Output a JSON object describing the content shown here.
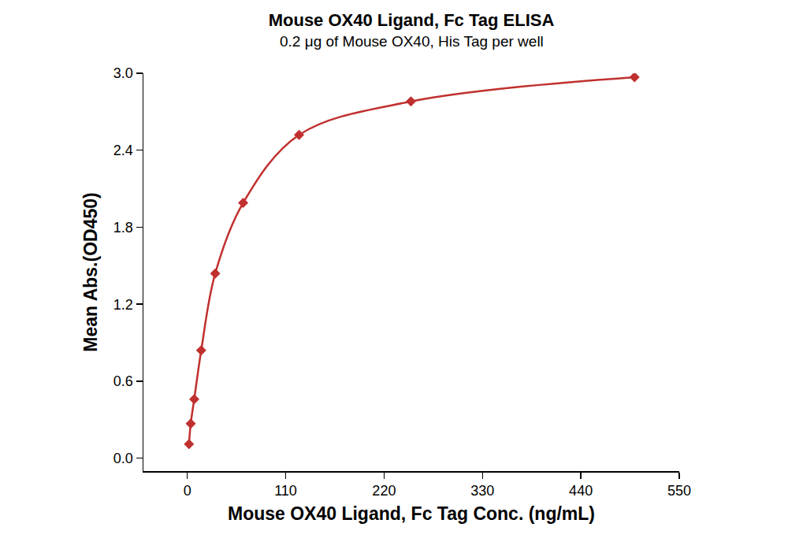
{
  "chart_data": {
    "type": "scatter",
    "title": "Mouse OX40 Ligand, Fc Tag ELISA",
    "subtitle": "0.2 μg of Mouse OX40, His Tag per well",
    "x_label": "Mouse OX40 Ligand, Fc Tag Conc. (ng/mL)",
    "y_label": "Mean Abs.(OD450)",
    "x": [
      1.95,
      3.9,
      7.8,
      15.6,
      31.25,
      62.5,
      125,
      250,
      500
    ],
    "values": [
      0.11,
      0.27,
      0.46,
      0.84,
      1.44,
      1.99,
      2.52,
      2.78,
      2.97
    ],
    "color": "#c0302f",
    "marker": "diamond",
    "line_style": "solid",
    "xlim": [
      -49,
      550
    ],
    "xticks": [
      0,
      110,
      220,
      330,
      440,
      550
    ],
    "ylim": [
      -0.1,
      3.0
    ],
    "yticks": [
      {
        "value": 0,
        "label": "0.0"
      },
      {
        "value": 0.6,
        "label": "0.6"
      },
      {
        "value": 1.2,
        "label": "1.2"
      },
      {
        "value": 1.8,
        "label": "1.8"
      },
      {
        "value": 2.4,
        "label": "2.4"
      },
      {
        "value": 3.0,
        "label": "3.0"
      }
    ],
    "grid": false
  }
}
